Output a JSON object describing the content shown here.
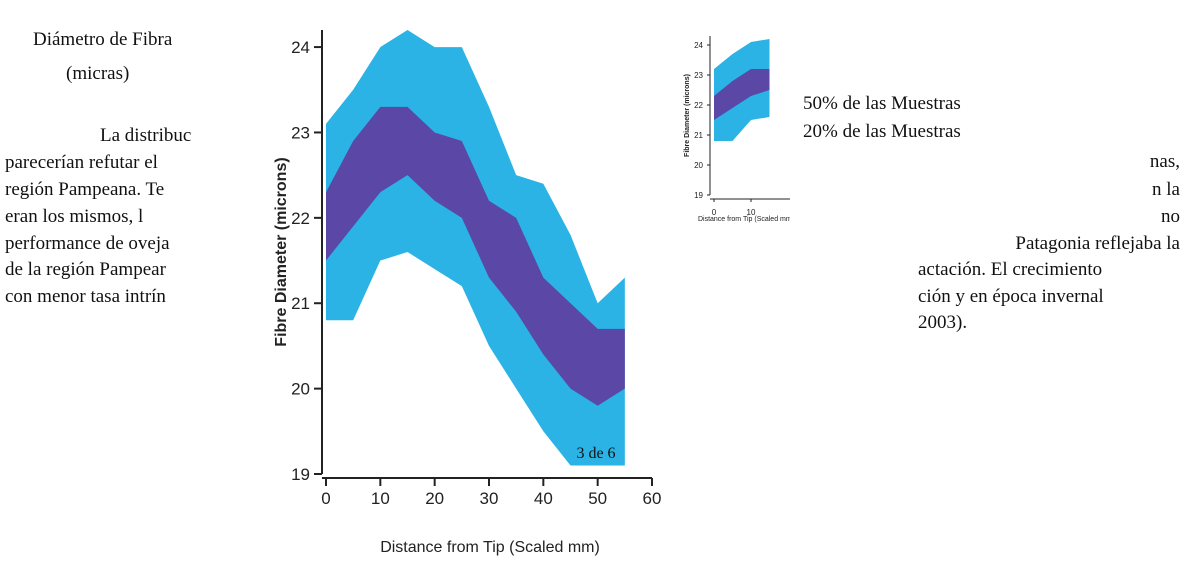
{
  "document": {
    "caption": [
      "Diámetro de Fibra",
      "(micras)"
    ],
    "paragraph_left": [
      "La distribuc",
      "parecerían refutar el",
      "región Pampeana. Te",
      "eran los mismos, l",
      "performance de oveja",
      "de la región Pampear",
      "con menor tasa intrín"
    ],
    "paragraph_right": [
      "nas,",
      "n la",
      "no",
      "Patagonia reflejaba la",
      "actación. El crecimiento",
      "ción y en época invernal",
      "2003)."
    ],
    "legend": [
      "50% de las Muestras",
      "20% de las Muestras"
    ],
    "page_number": "3 de 6"
  },
  "chart_data": [
    {
      "type": "band",
      "x": [
        0,
        5,
        10,
        15,
        20,
        25,
        30,
        35,
        40,
        45,
        50,
        55
      ],
      "series": [
        {
          "color": "#2bb3e6",
          "high": [
            23.1,
            23.5,
            24.0,
            24.2,
            24.0,
            24.0,
            23.3,
            22.5,
            22.4,
            21.8,
            21.0,
            21.3
          ],
          "low": [
            20.8,
            20.8,
            21.5,
            21.6,
            21.4,
            21.2,
            20.5,
            20.0,
            19.5,
            19.1,
            19.1,
            19.1
          ]
        },
        {
          "color": "#5a47a6",
          "high": [
            22.3,
            22.9,
            23.3,
            23.3,
            23.0,
            22.9,
            22.2,
            22.0,
            21.3,
            21.0,
            20.7,
            20.7
          ],
          "low": [
            21.5,
            21.9,
            22.3,
            22.5,
            22.2,
            22.0,
            21.3,
            20.9,
            20.4,
            20.0,
            19.8,
            20.0
          ]
        }
      ],
      "xlim": [
        0,
        60
      ],
      "ylim": [
        19,
        24.2
      ],
      "xticks": [
        0,
        10,
        20,
        30,
        40,
        50,
        60
      ],
      "yticks": [
        19,
        20,
        21,
        22,
        23,
        24
      ],
      "xlabel": "Distance from Tip (Scaled mm)",
      "ylabel": "Fibre Diameter (microns)"
    },
    {
      "type": "band",
      "x": [
        0,
        5,
        10,
        15
      ],
      "series": [
        {
          "color": "#2bb3e6",
          "high": [
            23.2,
            23.7,
            24.1,
            24.2
          ],
          "low": [
            20.8,
            20.8,
            21.5,
            21.6
          ]
        },
        {
          "color": "#5a47a6",
          "high": [
            22.3,
            22.8,
            23.2,
            23.2
          ],
          "low": [
            21.5,
            21.9,
            22.3,
            22.5
          ]
        }
      ],
      "xlim": [
        0,
        60
      ],
      "ylim": [
        19,
        24.3
      ],
      "xticks": [
        0,
        10
      ],
      "yticks": [
        19,
        20,
        21,
        22,
        23,
        24
      ],
      "xlabel": "Distance from Tip (Scaled mm)",
      "ylabel": "Fibre Diameter (microns)"
    }
  ]
}
